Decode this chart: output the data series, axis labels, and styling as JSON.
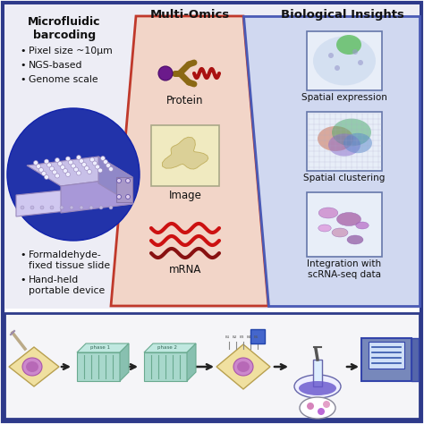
{
  "fig_bg": "#ffffff",
  "outer_border_color": "#2e3a8a",
  "top_bg": "#ededf5",
  "mid_panel_color": "#f2d5c8",
  "mid_border_color": "#c0392b",
  "right_panel_color": "#d0d8f0",
  "right_border_color": "#4a5ab5",
  "title1": "Microfluidic\nbarcoding",
  "title2": "Multi-Omics",
  "title3": "Biological Insights",
  "bullets_top": [
    "Pixel size ~10μm",
    "NGS-based",
    "Genome scale"
  ],
  "bullets_bottom1": "Formaldehyde-\nfixed tissue slide",
  "bullets_bottom2": "Hand-held\nportable device",
  "protein_body": "#8B6914",
  "protein_dot": "#5B1A8B",
  "mrna_red": "#CC1111",
  "mrna_dark": "#881111",
  "bottom_slide_color": "#f0e0a0",
  "bottom_slide_border": "#b8a050",
  "bottom_chip_color": "#a8d8cc",
  "bottom_chip_border": "#6aaa90",
  "bottom_chip_top": "#88ccbb",
  "sequencer_color": "#7788bb",
  "sequencer_screen": "#d0e0f8"
}
